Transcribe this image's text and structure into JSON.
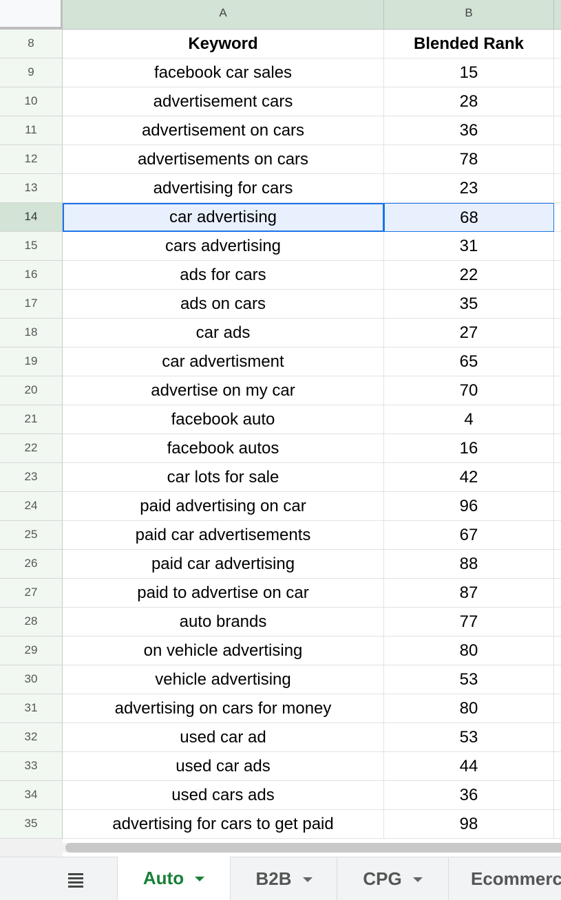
{
  "columns": {
    "a": "A",
    "b": "B"
  },
  "header_row": {
    "num": "8",
    "keyword": "Keyword",
    "rank": "Blended Rank"
  },
  "rows": [
    {
      "num": "9",
      "keyword": "facebook car sales",
      "rank": "15"
    },
    {
      "num": "10",
      "keyword": "advertisement cars",
      "rank": "28"
    },
    {
      "num": "11",
      "keyword": "advertisement on cars",
      "rank": "36"
    },
    {
      "num": "12",
      "keyword": "advertisements on cars",
      "rank": "78"
    },
    {
      "num": "13",
      "keyword": "advertising for cars",
      "rank": "23"
    },
    {
      "num": "14",
      "keyword": "car advertising",
      "rank": "68",
      "selected": true
    },
    {
      "num": "15",
      "keyword": "cars advertising",
      "rank": "31"
    },
    {
      "num": "16",
      "keyword": "ads for cars",
      "rank": "22"
    },
    {
      "num": "17",
      "keyword": "ads on cars",
      "rank": "35"
    },
    {
      "num": "18",
      "keyword": "car ads",
      "rank": "27"
    },
    {
      "num": "19",
      "keyword": "car advertisment",
      "rank": "65"
    },
    {
      "num": "20",
      "keyword": "advertise on my car",
      "rank": "70"
    },
    {
      "num": "21",
      "keyword": "facebook auto",
      "rank": "4"
    },
    {
      "num": "22",
      "keyword": "facebook autos",
      "rank": "16"
    },
    {
      "num": "23",
      "keyword": "car lots for sale",
      "rank": "42"
    },
    {
      "num": "24",
      "keyword": "paid advertising on car",
      "rank": "96"
    },
    {
      "num": "25",
      "keyword": "paid car advertisements",
      "rank": "67"
    },
    {
      "num": "26",
      "keyword": "paid car advertising",
      "rank": "88"
    },
    {
      "num": "27",
      "keyword": "paid to advertise on car",
      "rank": "87"
    },
    {
      "num": "28",
      "keyword": "auto brands",
      "rank": "77"
    },
    {
      "num": "29",
      "keyword": "on vehicle advertising",
      "rank": "80"
    },
    {
      "num": "30",
      "keyword": "vehicle advertising",
      "rank": "53"
    },
    {
      "num": "31",
      "keyword": "advertising on cars for money",
      "rank": "80"
    },
    {
      "num": "32",
      "keyword": "used car ad",
      "rank": "53"
    },
    {
      "num": "33",
      "keyword": "used car ads",
      "rank": "44"
    },
    {
      "num": "34",
      "keyword": "used cars ads",
      "rank": "36"
    },
    {
      "num": "35",
      "keyword": "advertising for cars to get paid",
      "rank": "98"
    }
  ],
  "tabs": [
    {
      "label": "Auto",
      "active": true
    },
    {
      "label": "B2B"
    },
    {
      "label": "CPG"
    },
    {
      "label": "Ecommerc"
    }
  ],
  "icons": {
    "all_sheets": "list-icon",
    "tab_menu": "caret-down-icon"
  },
  "colors": {
    "selection": "#1a73e8",
    "active_tab_text": "#188038",
    "header_bg": "#d3e3d6"
  }
}
